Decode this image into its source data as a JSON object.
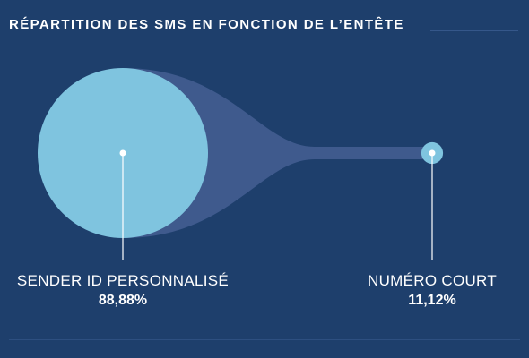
{
  "title": "RÉPARTITION DES SMS EN FONCTION DE L’ENTÊTE",
  "colors": {
    "background": "#1e3f6c",
    "bubble": "#7fc4df",
    "connector": "#3f5a8d",
    "text": "#ffffff"
  },
  "chart_data": {
    "type": "bubble",
    "title": "RÉPARTITION DES SMS EN FONCTION DE L’ENTÊTE",
    "categories": [
      "SENDER ID PERSONNALISÉ",
      "NUMÉRO COURT"
    ],
    "values": [
      88.88,
      11.12
    ],
    "value_labels": [
      "88,88%",
      "11,12%"
    ],
    "unit": "%"
  }
}
